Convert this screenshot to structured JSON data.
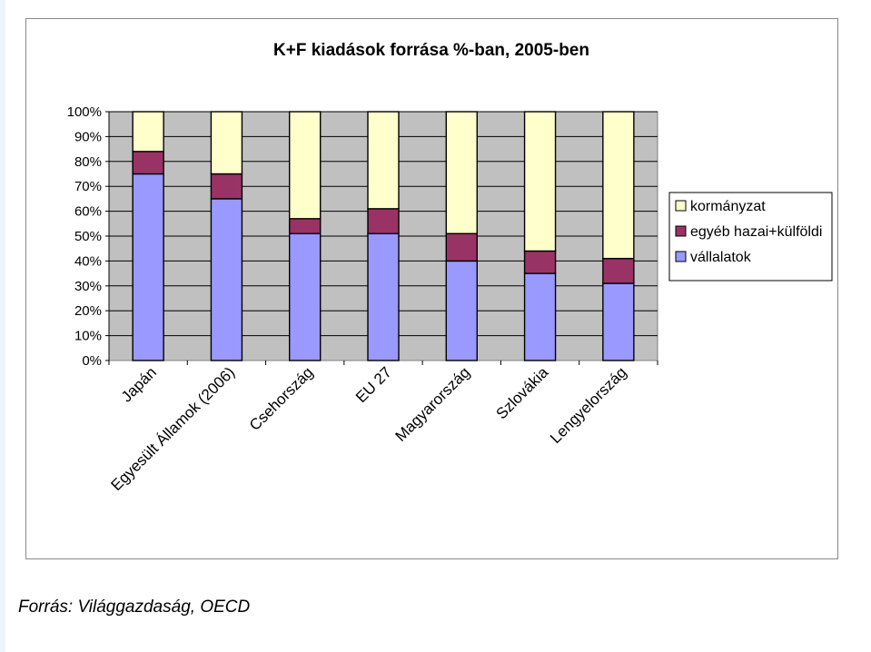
{
  "colors": {
    "plot_bg": "#c0c0c0",
    "vallalatok": "#9999ff",
    "egyeb": "#993366",
    "kormanyzat": "#ffffcc"
  },
  "chart_data": {
    "type": "bar",
    "stacked": true,
    "title": "K+F kiadások forrása %-ban, 2005-ben",
    "categories": [
      "Japán",
      "Egyesült Államok (2006)",
      "Csehország",
      "EU 27",
      "Magyarország",
      "Szlovákia",
      "Lengyelország"
    ],
    "series": [
      {
        "name": "vállalatok",
        "color": "#9999ff",
        "values": [
          75,
          65,
          51,
          51,
          40,
          35,
          31
        ]
      },
      {
        "name": "egyéb hazai+külföldi",
        "color": "#993366",
        "values": [
          9,
          10,
          6,
          10,
          11,
          9,
          10
        ]
      },
      {
        "name": "kormányzat",
        "color": "#ffffcc",
        "values": [
          16,
          25,
          43,
          39,
          49,
          56,
          59
        ]
      }
    ],
    "legend_order": [
      "kormányzat",
      "egyéb hazai+külföldi",
      "vállalatok"
    ],
    "yticks": [
      "0%",
      "10%",
      "20%",
      "30%",
      "40%",
      "50%",
      "60%",
      "70%",
      "80%",
      "90%",
      "100%"
    ],
    "ylim": [
      0,
      100
    ],
    "grid": true,
    "legend_position": "right"
  },
  "source": "Forrás: Világgazdaság, OECD"
}
